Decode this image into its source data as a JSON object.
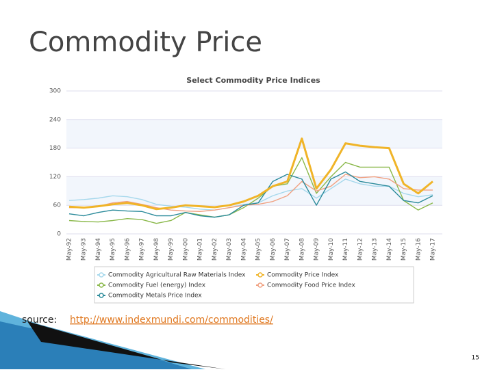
{
  "slide_title": "Commodity Price",
  "source_label": "source:",
  "source_link": "http://www.indexmundi.com/commodities/",
  "page_number": "15",
  "chart_data": {
    "type": "line",
    "title": "Select Commodity Price Indices",
    "categories": [
      "May-92",
      "May-93",
      "May-94",
      "May-95",
      "May-96",
      "May-97",
      "May-98",
      "May-99",
      "May-00",
      "May-01",
      "May-02",
      "May-03",
      "May-04",
      "May-05",
      "May-06",
      "May-07",
      "May-08",
      "May-09",
      "May-10",
      "May-11",
      "May-12",
      "May-13",
      "May-14",
      "May-15",
      "May-16",
      "May-17"
    ],
    "series": [
      {
        "name": "Commodity Agricultural Raw Materials Index",
        "color": "#a6d8ec",
        "values": [
          70,
          72,
          75,
          80,
          78,
          72,
          62,
          58,
          56,
          52,
          50,
          55,
          62,
          65,
          80,
          90,
          95,
          75,
          95,
          115,
          105,
          100,
          100,
          85,
          78,
          82
        ]
      },
      {
        "name": "Commodity Price Index",
        "color": "#f0b428",
        "values": [
          57,
          55,
          58,
          62,
          65,
          60,
          52,
          55,
          60,
          58,
          56,
          60,
          68,
          80,
          100,
          110,
          200,
          95,
          135,
          190,
          185,
          182,
          180,
          105,
          85,
          110
        ]
      },
      {
        "name": "Commodity Fuel (energy) Index",
        "color": "#8ab84a",
        "values": [
          28,
          26,
          25,
          28,
          32,
          30,
          22,
          28,
          45,
          40,
          35,
          40,
          55,
          75,
          100,
          105,
          160,
          85,
          120,
          150,
          140,
          140,
          140,
          70,
          50,
          65
        ]
      },
      {
        "name": "Commodity Food Price Index",
        "color": "#f0a080",
        "values": [
          55,
          55,
          58,
          65,
          68,
          62,
          55,
          50,
          48,
          47,
          50,
          55,
          60,
          62,
          68,
          80,
          110,
          90,
          100,
          125,
          118,
          120,
          115,
          95,
          92,
          92
        ]
      },
      {
        "name": "Commodity Metals Price Index",
        "color": "#2a8a9a",
        "values": [
          42,
          38,
          45,
          50,
          48,
          47,
          38,
          38,
          45,
          38,
          35,
          40,
          60,
          65,
          110,
          125,
          115,
          60,
          115,
          130,
          110,
          105,
          100,
          70,
          65,
          80
        ]
      }
    ],
    "ylim": [
      0,
      300
    ],
    "yticks": [
      0,
      60,
      120,
      180,
      240,
      300
    ],
    "grid": true
  }
}
